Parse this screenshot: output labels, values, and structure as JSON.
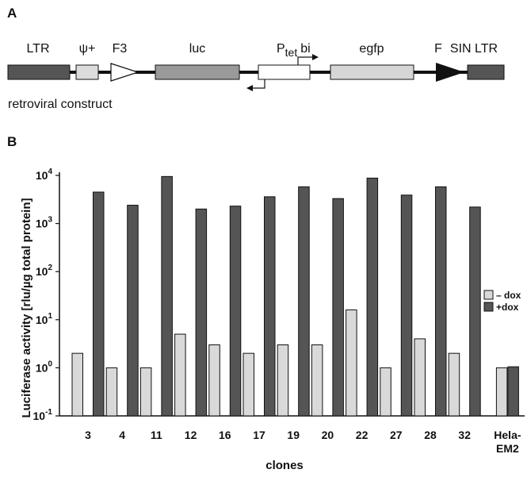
{
  "panel_a": {
    "letter": "A",
    "caption": "retroviral construct",
    "elements": [
      {
        "label": "LTR",
        "kind": "box",
        "fill": "#555555"
      },
      {
        "label": "ψ+",
        "kind": "box",
        "fill": "#dcdcdc"
      },
      {
        "label": "F3",
        "kind": "open-triangle"
      },
      {
        "label": "luc",
        "kind": "box",
        "fill": "#9a9a9a"
      },
      {
        "label": "P",
        "sub": "tet",
        "extra": "bi",
        "kind": "box",
        "fill": "#ffffff"
      },
      {
        "label": "egfp",
        "kind": "box",
        "fill": "#d6d6d6"
      },
      {
        "label": "F",
        "kind": "filled-triangle"
      },
      {
        "label": "SIN LTR",
        "kind": "box",
        "fill": "#555555"
      }
    ]
  },
  "panel_b": {
    "letter": "B",
    "chart_data": {
      "type": "bar",
      "yscale": "log",
      "ylim": [
        0.1,
        10000
      ],
      "ylabel": "Luciferase activity [rlu/µg total protein]",
      "xlabel": "clones",
      "y_ticks": [
        {
          "base": "10",
          "exp": "-1",
          "value": 0.1
        },
        {
          "base": "10",
          "exp": "0",
          "value": 1
        },
        {
          "base": "10",
          "exp": "1",
          "value": 10
        },
        {
          "base": "10",
          "exp": "2",
          "value": 100
        },
        {
          "base": "10",
          "exp": "3",
          "value": 1000
        },
        {
          "base": "10",
          "exp": "4",
          "value": 10000
        }
      ],
      "categories": [
        "3",
        "4",
        "11",
        "12",
        "16",
        "17",
        "19",
        "20",
        "22",
        "27",
        "28",
        "32",
        "Hela-EM2"
      ],
      "category_lines": [
        [
          "3"
        ],
        [
          "4"
        ],
        [
          "11"
        ],
        [
          "12"
        ],
        [
          "16"
        ],
        [
          "17"
        ],
        [
          "19"
        ],
        [
          "20"
        ],
        [
          "22"
        ],
        [
          "27"
        ],
        [
          "28"
        ],
        [
          "32"
        ],
        [
          "Hela-",
          "EM2"
        ]
      ],
      "series": [
        {
          "name": "– dox",
          "color": "#d9d9d9",
          "values": [
            2,
            1,
            1,
            5,
            3,
            2,
            3,
            3,
            16,
            1,
            4,
            2,
            1
          ]
        },
        {
          "name": "+dox",
          "color": "#555555",
          "values": [
            4500,
            2400,
            9500,
            2000,
            2300,
            3600,
            5800,
            3300,
            8800,
            3900,
            5800,
            2200,
            1.05
          ]
        }
      ],
      "legend": "right"
    }
  }
}
